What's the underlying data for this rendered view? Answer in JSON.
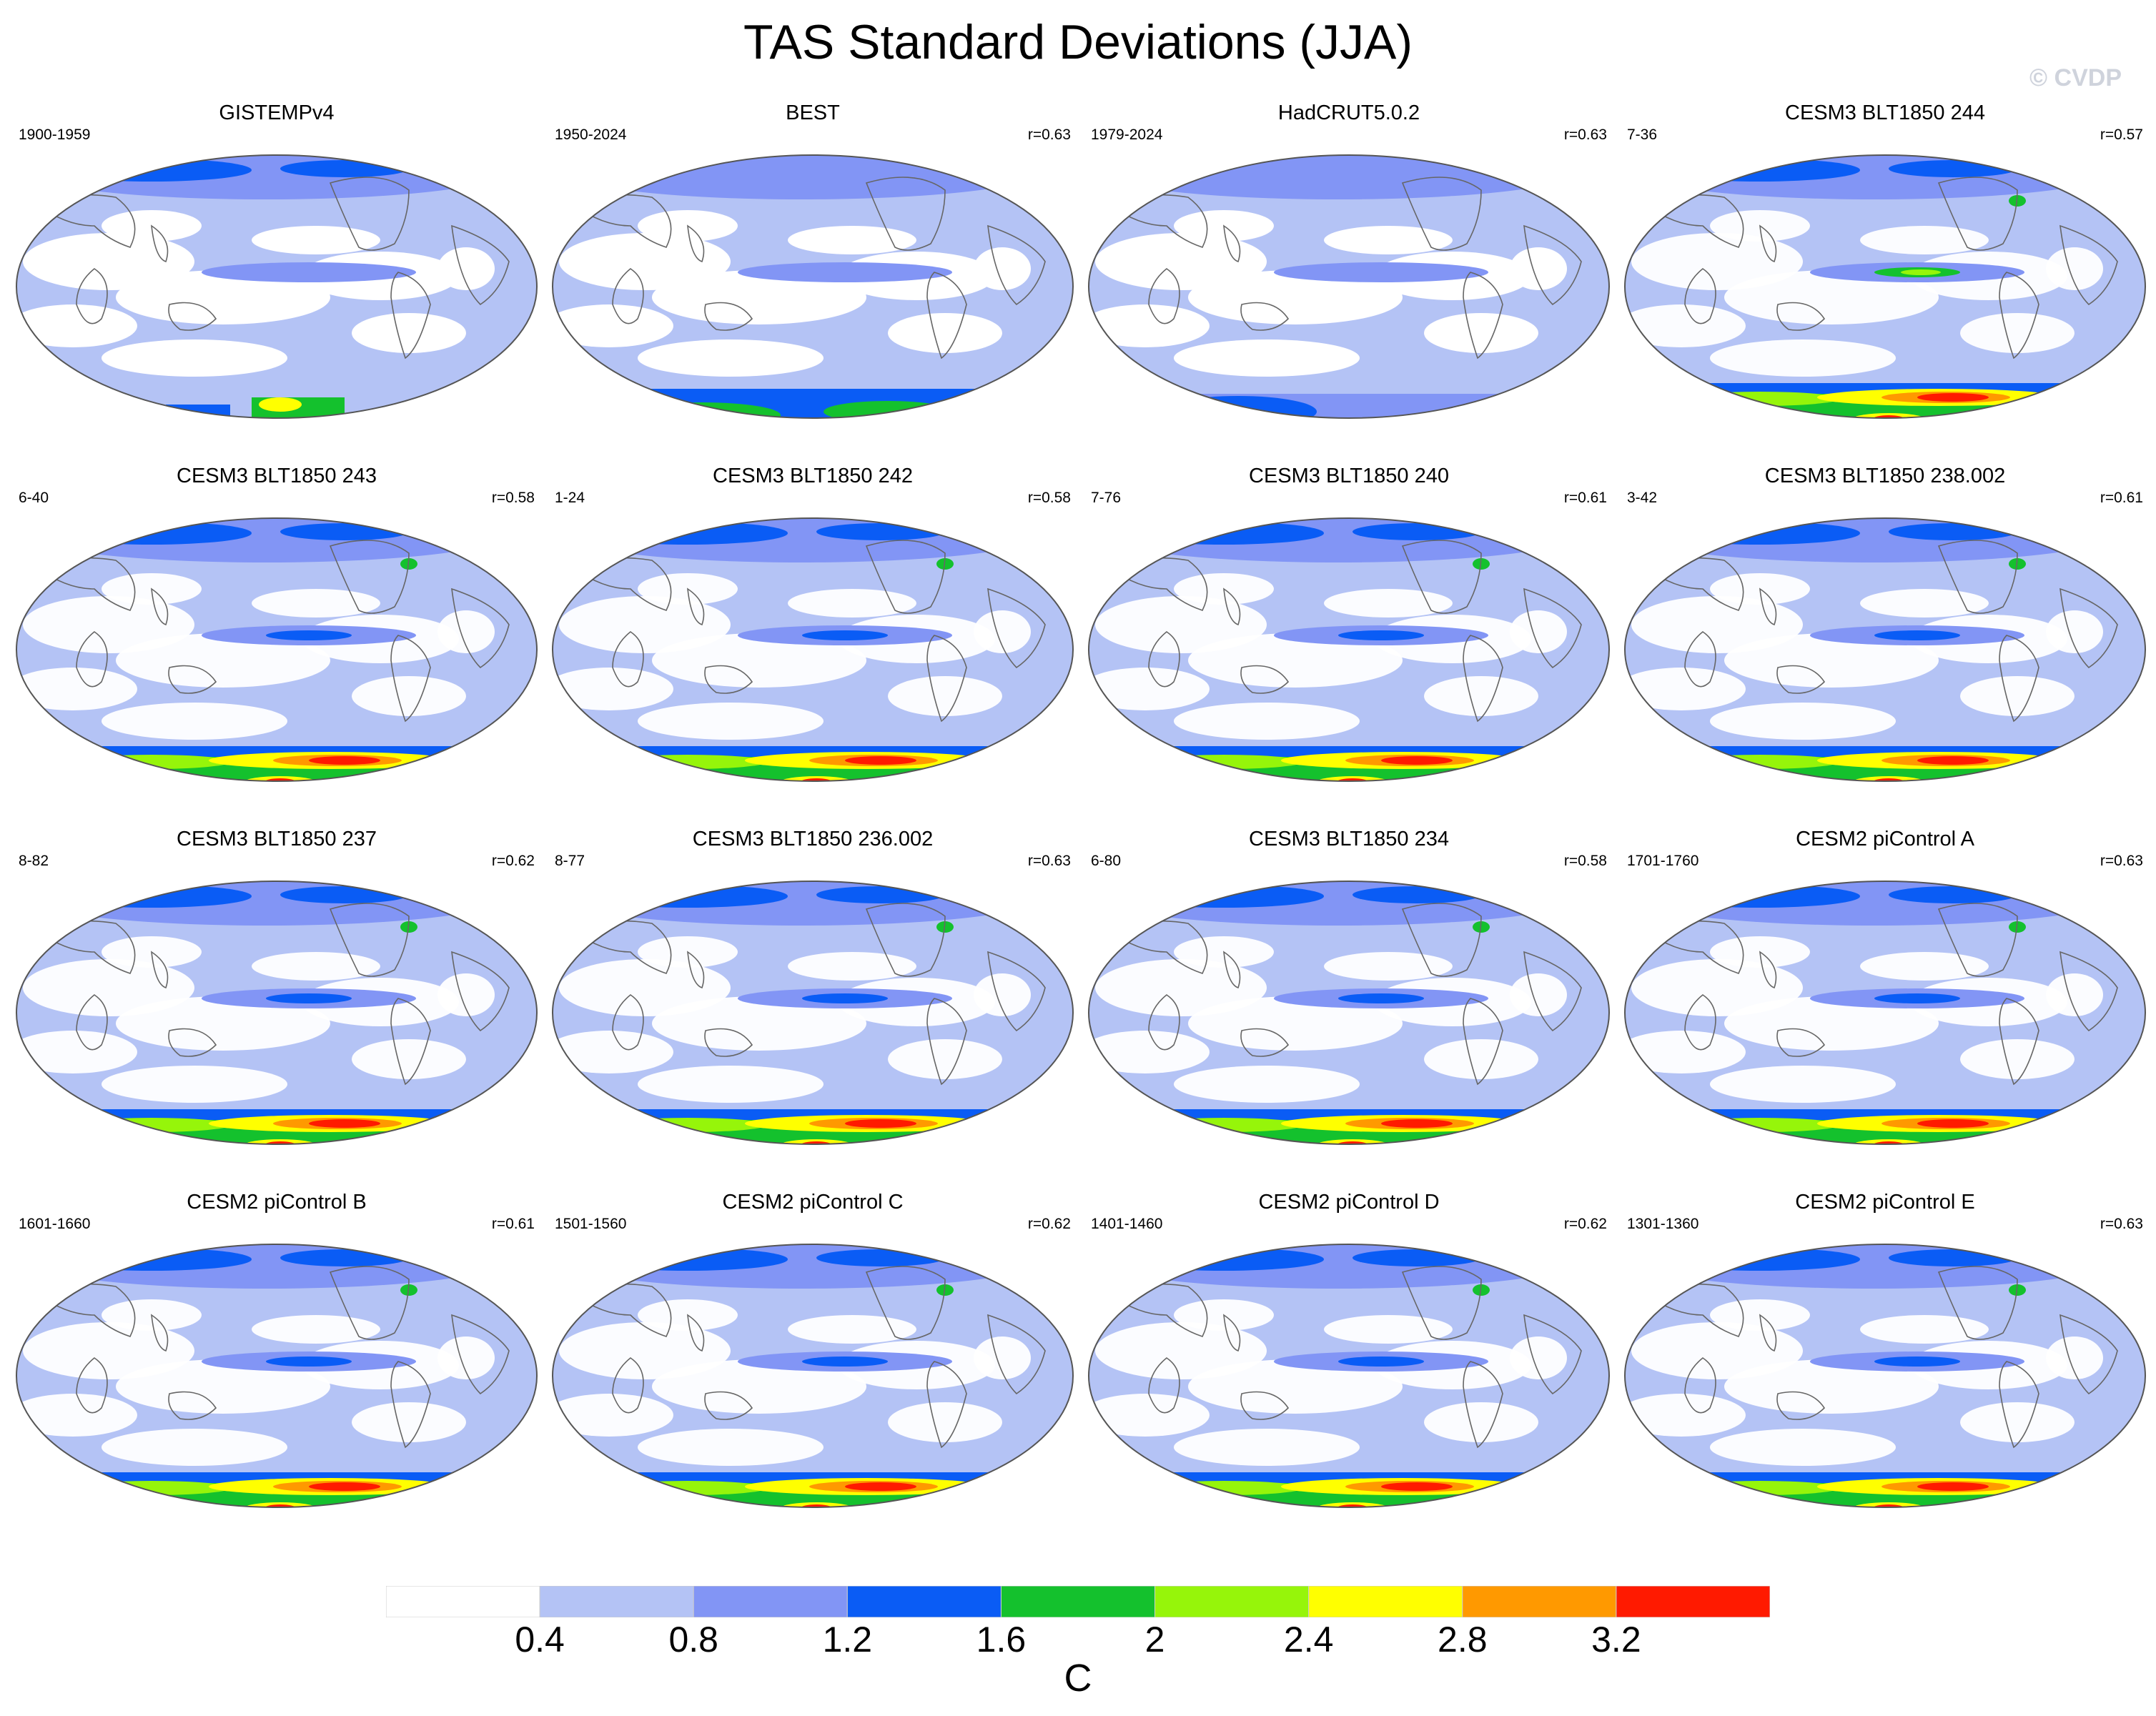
{
  "figure_title": "TAS Standard Deviations (JJA)",
  "watermark": "© CVDP",
  "colorbar": {
    "unit": "C",
    "levels": [
      "0.4",
      "0.8",
      "1.2",
      "1.6",
      "2",
      "2.4",
      "2.8",
      "3.2"
    ],
    "colors": [
      "#ffffff",
      "#b4c3f5",
      "#8295f5",
      "#0a5cf5",
      "#14c12d",
      "#96f50a",
      "#ffff00",
      "#ff9900",
      "#ff1a00"
    ]
  },
  "colors": {
    "ocean_low": "#b4c3f5",
    "land_outline": "#666666",
    "antarctic_high": "#ff1a00"
  },
  "panels": [
    {
      "title": "GISTEMPv4",
      "years": "1900-1959",
      "corr": ""
    },
    {
      "title": "BEST",
      "years": "1950-2024",
      "corr": "r=0.63"
    },
    {
      "title": "HadCRUT5.0.2",
      "years": "1979-2024",
      "corr": "r=0.63"
    },
    {
      "title": "CESM3 BLT1850 244",
      "years": "7-36",
      "corr": "r=0.57"
    },
    {
      "title": "CESM3 BLT1850 243",
      "years": "6-40",
      "corr": "r=0.58"
    },
    {
      "title": "CESM3 BLT1850 242",
      "years": "1-24",
      "corr": "r=0.58"
    },
    {
      "title": "CESM3 BLT1850 240",
      "years": "7-76",
      "corr": "r=0.61"
    },
    {
      "title": "CESM3 BLT1850 238.002",
      "years": "3-42",
      "corr": "r=0.61"
    },
    {
      "title": "CESM3 BLT1850 237",
      "years": "8-82",
      "corr": "r=0.62"
    },
    {
      "title": "CESM3 BLT1850 236.002",
      "years": "8-77",
      "corr": "r=0.63"
    },
    {
      "title": "CESM3 BLT1850 234",
      "years": "6-80",
      "corr": "r=0.58"
    },
    {
      "title": "CESM2 piControl A",
      "years": "1701-1760",
      "corr": "r=0.63"
    },
    {
      "title": "CESM2 piControl B",
      "years": "1601-1660",
      "corr": "r=0.61"
    },
    {
      "title": "CESM2 piControl C",
      "years": "1501-1560",
      "corr": "r=0.62"
    },
    {
      "title": "CESM2 piControl D",
      "years": "1401-1460",
      "corr": "r=0.62"
    },
    {
      "title": "CESM2 piControl E",
      "years": "1301-1360",
      "corr": "r=0.63"
    }
  ]
}
